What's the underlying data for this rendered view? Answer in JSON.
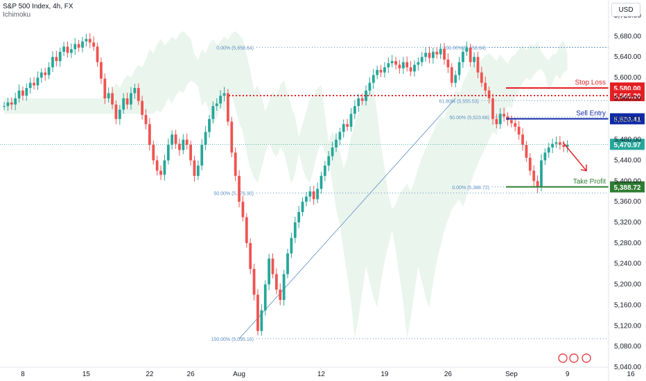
{
  "header": {
    "title": "S&P 500 Index, 4h, FX",
    "indicator": "Ichimoku",
    "currency": "USD"
  },
  "colors": {
    "up": "#26a69a",
    "down": "#ef5350",
    "stop_loss": "#e31f23",
    "sell_entry": "#0f2aa8",
    "take_profit": "#2e7d32",
    "fib": "#5b8ec4",
    "cloud_bull": "#e5f2e8",
    "cloud_bear": "#fde8e8",
    "arrow": "#e31f23"
  },
  "chart_data": {
    "type": "candlestick",
    "title": "S&P 500 Index, 4h, FX",
    "y_range": [
      5040,
      5710
    ],
    "y_ticks": [
      "5,040.00",
      "5,080.00",
      "5,120.00",
      "5,160.00",
      "5,200.00",
      "5,240.00",
      "5,280.00",
      "5,320.00",
      "5,360.00",
      "5,400.00",
      "5,440.00",
      "5,480.00",
      "5,520.00",
      "5,560.00",
      "5,600.00",
      "5,640.00",
      "5,680.00",
      "5,720.00"
    ],
    "x_ticks": [
      {
        "label": "8",
        "bar": 5
      },
      {
        "label": "15",
        "bar": 22
      },
      {
        "label": "22",
        "bar": 39
      },
      {
        "label": "26",
        "bar": 50
      },
      {
        "label": "Aug",
        "bar": 63
      },
      {
        "label": "12",
        "bar": 85
      },
      {
        "label": "19",
        "bar": 102
      },
      {
        "label": "26",
        "bar": 119
      },
      {
        "label": "Sep",
        "bar": 136
      },
      {
        "label": "9",
        "bar": 151
      },
      {
        "label": "16",
        "bar": 168
      }
    ],
    "closes": [
      5545,
      5552,
      5548,
      5560,
      5575,
      5565,
      5580,
      5590,
      5585,
      5600,
      5610,
      5605,
      5620,
      5640,
      5632,
      5650,
      5660,
      5648,
      5655,
      5665,
      5658,
      5670,
      5675,
      5668,
      5660,
      5630,
      5598,
      5560,
      5570,
      5548,
      5520,
      5538,
      5560,
      5548,
      5570,
      5580,
      5555,
      5528,
      5510,
      5470,
      5440,
      5420,
      5412,
      5440,
      5470,
      5490,
      5472,
      5460,
      5480,
      5470,
      5440,
      5410,
      5430,
      5470,
      5495,
      5520,
      5545,
      5550,
      5565,
      5570,
      5515,
      5455,
      5410,
      5360,
      5330,
      5280,
      5230,
      5180,
      5110,
      5150,
      5200,
      5250,
      5220,
      5190,
      5170,
      5220,
      5260,
      5290,
      5320,
      5340,
      5360,
      5370,
      5380,
      5365,
      5385,
      5410,
      5430,
      5448,
      5465,
      5480,
      5495,
      5510,
      5505,
      5530,
      5545,
      5560,
      5555,
      5575,
      5590,
      5605,
      5615,
      5610,
      5620,
      5628,
      5632,
      5625,
      5618,
      5630,
      5620,
      5612,
      5625,
      5630,
      5640,
      5648,
      5638,
      5650,
      5645,
      5656,
      5635,
      5620,
      5590,
      5605,
      5630,
      5650,
      5658,
      5630,
      5640,
      5610,
      5590,
      5575,
      5560,
      5520,
      5510,
      5530,
      5525,
      5518,
      5512,
      5505,
      5490,
      5470,
      5445,
      5420,
      5400,
      5388,
      5440,
      5455,
      5465,
      5472,
      5475,
      5470,
      5466,
      5470
    ],
    "series": [
      {
        "name": "S&P 500 Index"
      }
    ],
    "levels": [
      {
        "name": "Stop Loss",
        "price": 5580.0,
        "label": "5,580.00"
      },
      {
        "name": "",
        "price": 5565.2,
        "label": "5,565.20"
      },
      {
        "name": "Sell Entry",
        "price": 5520.41,
        "label": "5,520.41"
      },
      {
        "name": "",
        "price": 5470.97,
        "label": "5,470.97"
      },
      {
        "name": "Take Profit",
        "price": 5388.72,
        "label": "5,388.72"
      }
    ],
    "fib_levels": [
      {
        "label": "0.00% (5,658.64)",
        "price": 5658.64
      },
      {
        "label": "100.00% (5,658.64)",
        "price": 5658.64
      },
      {
        "label": "61.80% (5,555.53)",
        "price": 5555.53
      },
      {
        "label": "50.00% (5,523.68)",
        "price": 5523.68
      },
      {
        "label": "50.00% (5,376.90)",
        "price": 5376.9
      },
      {
        "label": "0.00% (5,388.72)",
        "price": 5388.72
      },
      {
        "label": "100.00% (5,095.16)",
        "price": 5095.16
      }
    ]
  }
}
